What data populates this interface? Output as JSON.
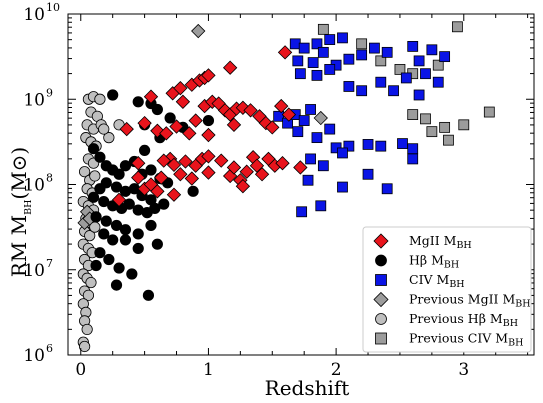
{
  "chart_data": {
    "type": "scatter",
    "xlabel": "Redshift",
    "ylabel": {
      "main": "RM  M",
      "sub": "BH",
      "rest": "(M",
      "sym": "⊙",
      "close": ")"
    },
    "xlim": [
      -0.1,
      3.55
    ],
    "ylim_log10": [
      6,
      10
    ],
    "y_scale": "log",
    "x_ticks": [
      "0",
      "1",
      "2",
      "3"
    ],
    "x_tick_values": [
      0,
      1,
      2,
      3
    ],
    "y_ticks": [
      {
        "base": "10",
        "exp": "6",
        "value": 6
      },
      {
        "base": "10",
        "exp": "7",
        "value": 7
      },
      {
        "base": "10",
        "exp": "8",
        "value": 8
      },
      {
        "base": "10",
        "exp": "9",
        "value": 9
      },
      {
        "base": "10",
        "exp": "10",
        "value": 10
      }
    ],
    "grid": false,
    "legend_position": "bottom-right",
    "series": [
      {
        "name": {
          "main": "MgII M",
          "sub": "BH"
        },
        "marker": "diamond",
        "fill": "#e8141c",
        "stroke": "#000000",
        "points": [
          [
            0.36,
            8.65
          ],
          [
            0.55,
            9.03
          ],
          [
            0.5,
            8.72
          ],
          [
            0.72,
            9.07
          ],
          [
            0.78,
            9.13
          ],
          [
            0.8,
            8.97
          ],
          [
            0.87,
            9.17
          ],
          [
            0.93,
            9.22
          ],
          [
            0.97,
            9.25
          ],
          [
            1.0,
            9.28
          ],
          [
            1.17,
            9.37
          ],
          [
            1.6,
            9.55
          ],
          [
            0.6,
            8.63
          ],
          [
            0.67,
            8.6
          ],
          [
            0.75,
            8.68
          ],
          [
            0.85,
            8.6
          ],
          [
            0.9,
            8.75
          ],
          [
            0.97,
            8.92
          ],
          [
            1.03,
            8.97
          ],
          [
            1.08,
            8.95
          ],
          [
            1.13,
            8.87
          ],
          [
            1.17,
            8.82
          ],
          [
            1.22,
            8.89
          ],
          [
            1.27,
            8.9
          ],
          [
            1.33,
            8.87
          ],
          [
            1.4,
            8.8
          ],
          [
            1.45,
            8.72
          ],
          [
            1.5,
            8.67
          ],
          [
            1.57,
            8.92
          ],
          [
            1.63,
            8.82
          ],
          [
            1.2,
            8.7
          ],
          [
            1.0,
            8.58
          ],
          [
            0.3,
            7.82
          ],
          [
            0.45,
            8.08
          ],
          [
            0.5,
            7.95
          ],
          [
            0.55,
            8.0
          ],
          [
            0.6,
            7.92
          ],
          [
            0.63,
            8.08
          ],
          [
            0.7,
            8.3
          ],
          [
            0.73,
            8.23
          ],
          [
            0.78,
            8.12
          ],
          [
            0.82,
            8.27
          ],
          [
            0.87,
            8.07
          ],
          [
            0.9,
            8.22
          ],
          [
            0.95,
            8.3
          ],
          [
            1.0,
            8.14
          ],
          [
            1.1,
            8.28
          ],
          [
            1.17,
            8.1
          ],
          [
            1.2,
            8.2
          ],
          [
            1.25,
            8.05
          ],
          [
            1.3,
            8.15
          ],
          [
            1.35,
            8.32
          ],
          [
            1.38,
            8.22
          ],
          [
            1.42,
            8.12
          ],
          [
            1.47,
            8.3
          ],
          [
            1.52,
            8.22
          ],
          [
            1.58,
            8.25
          ],
          [
            1.72,
            8.2
          ],
          [
            0.45,
            8.25
          ],
          [
            0.73,
            7.88
          ],
          [
            1.0,
            8.33
          ],
          [
            1.27,
            7.98
          ],
          [
            0.65,
            8.28
          ]
        ]
      },
      {
        "name": {
          "main": "Hβ M",
          "sub": "BH"
        },
        "marker": "circle",
        "fill": "#000000",
        "stroke": "#000000",
        "points": [
          [
            0.25,
            9.05
          ],
          [
            0.45,
            8.97
          ],
          [
            0.55,
            8.95
          ],
          [
            0.6,
            8.88
          ],
          [
            0.5,
            8.7
          ],
          [
            0.7,
            8.78
          ],
          [
            0.8,
            8.67
          ],
          [
            1.0,
            8.75
          ],
          [
            0.62,
            8.55
          ],
          [
            0.1,
            8.42
          ],
          [
            0.15,
            8.32
          ],
          [
            0.2,
            8.22
          ],
          [
            0.25,
            8.17
          ],
          [
            0.3,
            8.12
          ],
          [
            0.35,
            8.22
          ],
          [
            0.42,
            8.27
          ],
          [
            0.48,
            8.12
          ],
          [
            0.55,
            8.17
          ],
          [
            0.62,
            8.07
          ],
          [
            0.68,
            8.02
          ],
          [
            0.2,
            8.02
          ],
          [
            0.28,
            7.97
          ],
          [
            0.35,
            7.92
          ],
          [
            0.42,
            7.95
          ],
          [
            0.48,
            7.87
          ],
          [
            0.55,
            7.82
          ],
          [
            0.15,
            7.95
          ],
          [
            0.1,
            7.85
          ],
          [
            0.18,
            7.8
          ],
          [
            0.25,
            7.75
          ],
          [
            0.32,
            7.72
          ],
          [
            0.38,
            7.77
          ],
          [
            0.45,
            7.7
          ],
          [
            0.52,
            7.67
          ],
          [
            0.58,
            7.72
          ],
          [
            0.65,
            7.77
          ],
          [
            0.12,
            7.62
          ],
          [
            0.2,
            7.57
          ],
          [
            0.28,
            7.52
          ],
          [
            0.35,
            7.47
          ],
          [
            0.45,
            7.42
          ],
          [
            0.55,
            7.52
          ],
          [
            0.18,
            7.42
          ],
          [
            0.25,
            7.35
          ],
          [
            0.35,
            7.35
          ],
          [
            0.45,
            7.25
          ],
          [
            0.15,
            7.2
          ],
          [
            0.22,
            7.12
          ],
          [
            0.3,
            7.02
          ],
          [
            0.4,
            6.95
          ],
          [
            0.12,
            7.05
          ],
          [
            0.28,
            6.82
          ],
          [
            0.53,
            6.7
          ],
          [
            0.6,
            7.3
          ],
          [
            0.88,
            7.92
          ],
          [
            0.5,
            8.4
          ]
        ]
      },
      {
        "name": {
          "main": "CIV M",
          "sub": "BH"
        },
        "marker": "square",
        "fill": "#0a14e6",
        "stroke": "#000000",
        "points": [
          [
            1.68,
            9.65
          ],
          [
            1.75,
            9.6
          ],
          [
            1.85,
            9.65
          ],
          [
            1.95,
            9.7
          ],
          [
            2.05,
            9.72
          ],
          [
            1.7,
            9.45
          ],
          [
            1.82,
            9.43
          ],
          [
            1.9,
            9.55
          ],
          [
            2.0,
            9.4
          ],
          [
            2.1,
            9.47
          ],
          [
            2.2,
            9.52
          ],
          [
            2.3,
            9.6
          ],
          [
            2.4,
            9.55
          ],
          [
            2.6,
            9.62
          ],
          [
            2.75,
            9.58
          ],
          [
            2.85,
            9.5
          ],
          [
            2.65,
            9.45
          ],
          [
            1.72,
            9.3
          ],
          [
            1.85,
            9.28
          ],
          [
            1.95,
            9.35
          ],
          [
            2.1,
            9.15
          ],
          [
            2.2,
            9.1
          ],
          [
            2.35,
            9.2
          ],
          [
            2.45,
            9.1
          ],
          [
            2.55,
            9.25
          ],
          [
            2.7,
            9.3
          ],
          [
            2.8,
            9.2
          ],
          [
            2.65,
            9.05
          ],
          [
            1.55,
            8.8
          ],
          [
            1.62,
            8.72
          ],
          [
            1.68,
            8.82
          ],
          [
            1.75,
            8.75
          ],
          [
            1.8,
            8.88
          ],
          [
            1.7,
            8.62
          ],
          [
            1.85,
            8.55
          ],
          [
            1.95,
            8.65
          ],
          [
            2.1,
            8.45
          ],
          [
            2.25,
            8.47
          ],
          [
            2.35,
            8.45
          ],
          [
            2.52,
            8.48
          ],
          [
            2.6,
            8.42
          ],
          [
            2.0,
            8.43
          ],
          [
            2.05,
            8.37
          ],
          [
            1.8,
            8.3
          ],
          [
            1.9,
            8.22
          ],
          [
            2.25,
            8.12
          ],
          [
            2.4,
            7.95
          ],
          [
            2.05,
            7.97
          ],
          [
            1.73,
            7.68
          ],
          [
            1.88,
            7.75
          ],
          [
            1.78,
            8.05
          ],
          [
            2.6,
            8.3
          ]
        ]
      },
      {
        "name": {
          "main": "Previous MgII M",
          "sub": "BH"
        },
        "marker": "diamond",
        "fill": "#9c9c9c",
        "stroke": "#000000",
        "points": [
          [
            0.92,
            9.8
          ],
          [
            1.88,
            8.78
          ],
          [
            0.05,
            7.68
          ],
          [
            0.03,
            7.55
          ],
          [
            0.07,
            7.6
          ]
        ]
      },
      {
        "name": {
          "main": "Previous Hβ M",
          "sub": "BH"
        },
        "marker": "circle",
        "fill": "#bfbfbf",
        "stroke": "#000000",
        "points": [
          [
            0.06,
            9.0
          ],
          [
            0.1,
            9.03
          ],
          [
            0.15,
            9.0
          ],
          [
            0.08,
            8.85
          ],
          [
            0.13,
            8.8
          ],
          [
            0.05,
            8.7
          ],
          [
            0.1,
            8.65
          ],
          [
            0.16,
            8.7
          ],
          [
            0.04,
            8.55
          ],
          [
            0.08,
            8.5
          ],
          [
            0.12,
            8.45
          ],
          [
            0.06,
            8.3
          ],
          [
            0.1,
            8.25
          ],
          [
            0.03,
            8.15
          ],
          [
            0.07,
            8.05
          ],
          [
            0.11,
            8.1
          ],
          [
            0.05,
            7.95
          ],
          [
            0.09,
            7.9
          ],
          [
            0.02,
            7.8
          ],
          [
            0.06,
            7.75
          ],
          [
            0.1,
            7.7
          ],
          [
            0.04,
            7.6
          ],
          [
            0.08,
            7.55
          ],
          [
            0.03,
            7.45
          ],
          [
            0.07,
            7.4
          ],
          [
            0.11,
            7.5
          ],
          [
            0.02,
            7.3
          ],
          [
            0.06,
            7.25
          ],
          [
            0.09,
            7.2
          ],
          [
            0.03,
            7.12
          ],
          [
            0.06,
            7.05
          ],
          [
            0.02,
            6.95
          ],
          [
            0.05,
            6.9
          ],
          [
            0.08,
            6.85
          ],
          [
            0.03,
            6.75
          ],
          [
            0.06,
            6.7
          ],
          [
            0.02,
            6.6
          ],
          [
            0.04,
            6.5
          ],
          [
            0.03,
            6.4
          ],
          [
            0.05,
            6.3
          ],
          [
            0.02,
            6.15
          ],
          [
            0.03,
            6.1
          ],
          [
            0.3,
            8.7
          ],
          [
            0.22,
            8.55
          ],
          [
            0.18,
            8.65
          ]
        ]
      },
      {
        "name": {
          "main": "Previous CIV M",
          "sub": "BH"
        },
        "marker": "square",
        "fill": "#9c9c9c",
        "stroke": "#000000",
        "points": [
          [
            1.9,
            9.82
          ],
          [
            2.2,
            9.65
          ],
          [
            2.35,
            9.45
          ],
          [
            2.5,
            9.35
          ],
          [
            2.8,
            9.4
          ],
          [
            2.95,
            9.85
          ],
          [
            2.6,
            8.82
          ],
          [
            2.7,
            8.77
          ],
          [
            2.75,
            8.62
          ],
          [
            2.85,
            8.67
          ],
          [
            2.88,
            8.52
          ],
          [
            3.0,
            8.7
          ],
          [
            3.2,
            8.85
          ],
          [
            2.6,
            9.3
          ]
        ]
      }
    ]
  }
}
